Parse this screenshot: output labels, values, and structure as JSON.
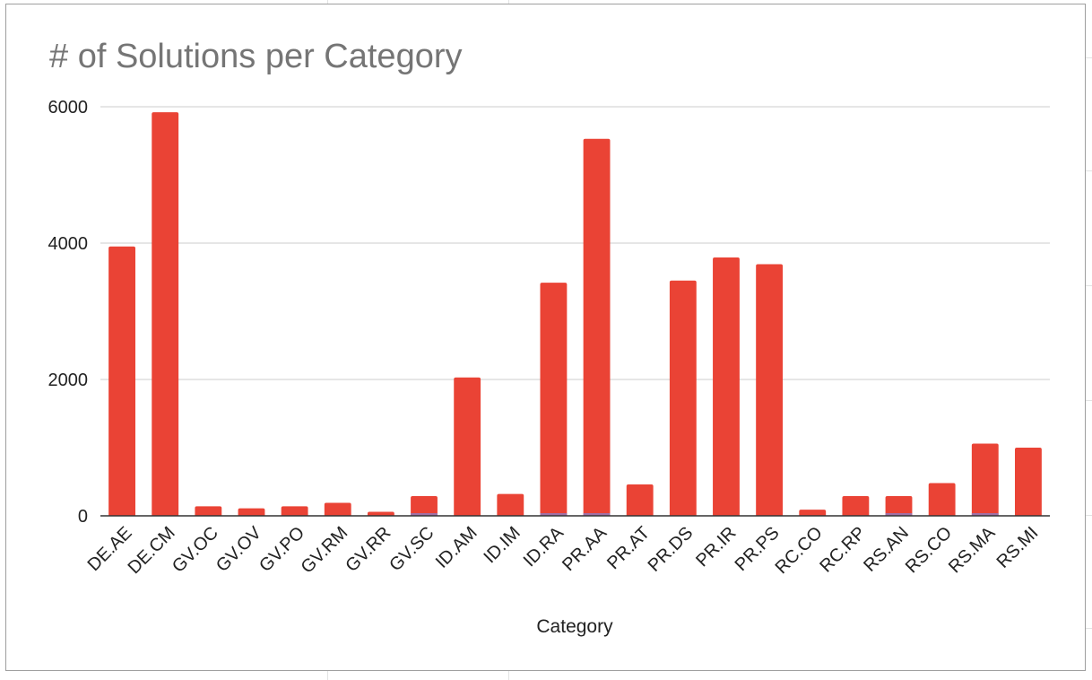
{
  "chart_data": {
    "type": "bar",
    "title": "# of Solutions per Category",
    "xlabel": "Category",
    "ylabel": "",
    "ylim": [
      0,
      6000
    ],
    "yticks": [
      "0",
      "2000",
      "4000",
      "6000"
    ],
    "grid": true,
    "legend": "none",
    "categories": [
      "DE.AE",
      "DE.CM",
      "GV.OC",
      "GV.OV",
      "GV.PO",
      "GV.RM",
      "GV.RR",
      "GV.SC",
      "ID.AM",
      "ID.IM",
      "ID.RA",
      "PR.AA",
      "PR.AT",
      "PR.DS",
      "PR.IR",
      "PR.PS",
      "RC.CO",
      "RC.RP",
      "RS.AN",
      "RS.CO",
      "RS.MA",
      "RS.MI"
    ],
    "series": [
      {
        "color": "#ea4335",
        "values": [
          3950,
          5920,
          140,
          110,
          140,
          190,
          60,
          290,
          2030,
          320,
          3420,
          5530,
          460,
          3450,
          3790,
          3690,
          90,
          290,
          290,
          480,
          1060,
          1000
        ]
      },
      {
        "color": "#8e7cc3",
        "values": [
          0,
          0,
          0,
          0,
          0,
          0,
          0,
          25,
          0,
          0,
          25,
          25,
          0,
          0,
          0,
          0,
          0,
          0,
          25,
          0,
          25,
          0
        ]
      }
    ]
  },
  "colors": {
    "bar": "#ea4335",
    "gridline": "#cccccc",
    "axis": "#333333",
    "title": "#757575"
  }
}
